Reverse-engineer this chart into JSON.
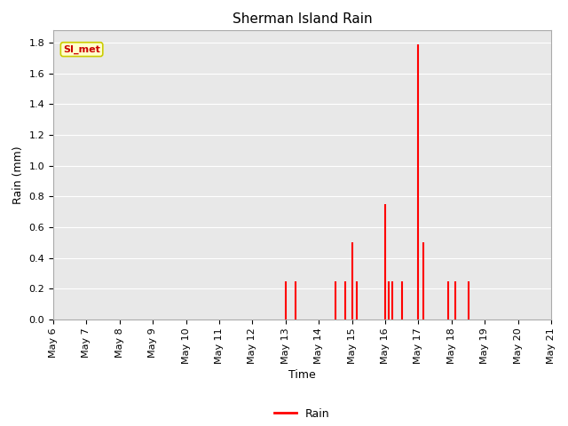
{
  "title": "Sherman Island Rain",
  "xlabel": "Time",
  "ylabel": "Rain (mm)",
  "annotation_text": "SI_met",
  "annotation_color": "#cc0000",
  "annotation_bg": "#ffffcc",
  "annotation_edge": "#cccc00",
  "line_color": "#ff0000",
  "background_color": "#e8e8e8",
  "fig_bg": "#ffffff",
  "ylim": [
    0.0,
    1.88
  ],
  "yticks": [
    0.0,
    0.2,
    0.4,
    0.6,
    0.8,
    1.0,
    1.2,
    1.4,
    1.6,
    1.8
  ],
  "x_start_day": 6,
  "x_end_day": 21,
  "x_tick_positions": [
    6,
    7,
    8,
    9,
    10,
    11,
    12,
    13,
    14,
    15,
    16,
    17,
    18,
    19,
    20,
    21
  ],
  "x_tick_labels": [
    "May 6",
    "May 7",
    "May 8",
    "May 9",
    "May 10",
    "May 11",
    "May 12",
    "May 13",
    "May 14",
    "May 15",
    "May 16",
    "May 17",
    "May 18",
    "May 19",
    "May 20",
    "May 21"
  ],
  "data_x_days": [
    13.0,
    13.3,
    14.5,
    14.8,
    15.0,
    15.15,
    16.0,
    16.1,
    16.2,
    16.5,
    17.0,
    17.15,
    17.9,
    18.1,
    18.5
  ],
  "data_y": [
    0.25,
    0.25,
    0.25,
    0.25,
    0.5,
    0.25,
    0.75,
    0.25,
    0.25,
    0.25,
    1.79,
    0.5,
    0.25,
    0.25,
    0.25
  ],
  "legend_label": "Rain",
  "grid_color": "#ffffff",
  "line_width": 1.5,
  "title_fontsize": 11,
  "label_fontsize": 9,
  "tick_fontsize": 8
}
